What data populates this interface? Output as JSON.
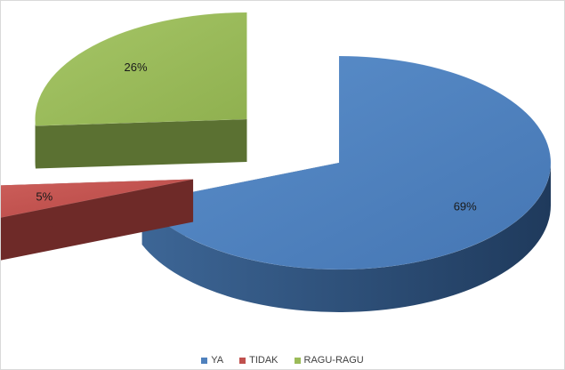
{
  "chart_data": {
    "type": "pie",
    "variant": "3d-exploded",
    "categories": [
      "YA",
      "TIDAK",
      "RAGU-RAGU"
    ],
    "values": [
      69,
      5,
      26
    ],
    "labels": [
      "69%",
      "5%",
      "26%"
    ],
    "colors": [
      "#4f81bd",
      "#c0504d",
      "#9bbb59"
    ],
    "side_colors": [
      "#2c4d75",
      "#6e2a28",
      "#5b7132"
    ],
    "legend_position": "bottom",
    "title": ""
  }
}
